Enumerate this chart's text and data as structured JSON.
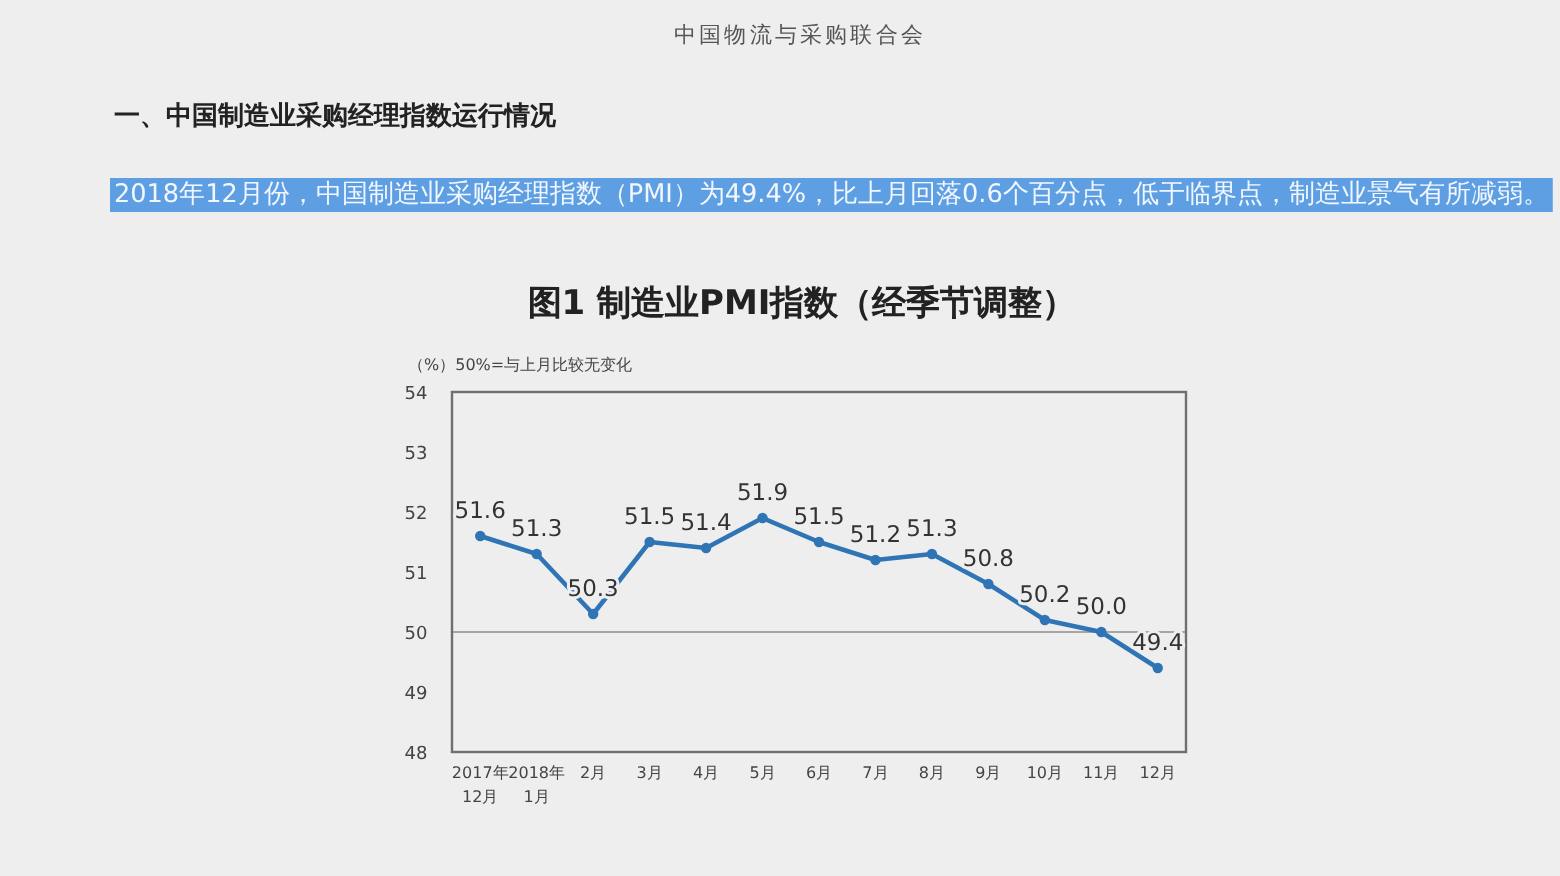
{
  "chart_data": {
    "type": "line",
    "title": "图1 制造业PMI指数（经季节调整）",
    "ylabel": "（%）50%=与上月比较无变化",
    "annotations": [
      "中国物流与采购联合会",
      "一、中国制造业采购经理指数运行情况",
      "2018年12月份，中国制造业采购经理指数（PMI）为49.4%，比上月回落0.6个百分点，低于临界点，制造业景气有所减弱。"
    ],
    "categories": [
      "2017年\n12月",
      "2018年\n1月",
      "2月",
      "3月",
      "4月",
      "5月",
      "6月",
      "7月",
      "8月",
      "9月",
      "10月",
      "11月",
      "12月"
    ],
    "series": [
      {
        "color": "#2f75b5",
        "values": [
          51.6,
          51.3,
          50.3,
          51.5,
          51.4,
          51.9,
          51.5,
          51.2,
          51.3,
          50.8,
          50.2,
          50.0,
          49.4
        ],
        "value_labels": [
          "51.6",
          "51.3",
          "50.3",
          "51.5",
          "51.4",
          "51.9",
          "51.5",
          "51.2",
          "51.3",
          "50.8",
          "50.2",
          "50.0",
          "49.4"
        ]
      }
    ],
    "ylim": [
      48,
      54
    ],
    "yticks": [
      48,
      49,
      50,
      51,
      52,
      53,
      54
    ],
    "ref_lines": [
      {
        "axis": "y",
        "value": 50,
        "color": "#a6a6a6"
      }
    ],
    "marker": "circle",
    "line_style": "solid"
  }
}
